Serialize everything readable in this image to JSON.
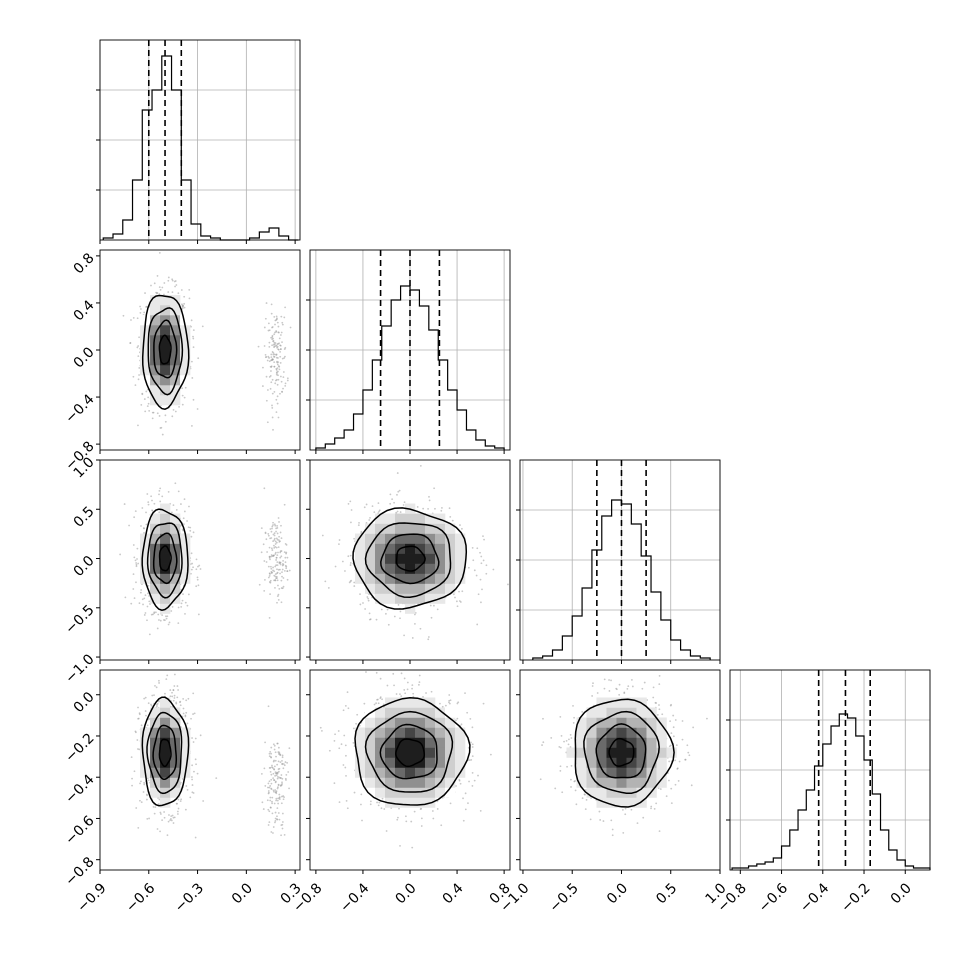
{
  "chart_data": {
    "type": "corner",
    "variables": [
      {
        "range": [
          -0.9,
          0.33
        ],
        "ticks": [
          -0.9,
          -0.6,
          -0.3,
          0.0,
          0.3
        ],
        "tick_labels": [
          "-0.9",
          "-0.6",
          "-0.3",
          "0.0",
          "0.3"
        ],
        "quantiles": [
          -0.6,
          -0.5,
          -0.4
        ],
        "histogram": {
          "edges": [
            -0.88,
            -0.82,
            -0.76,
            -0.7,
            -0.64,
            -0.58,
            -0.52,
            -0.46,
            -0.4,
            -0.34,
            -0.28,
            -0.22,
            -0.16,
            -0.1,
            -0.04,
            0.02,
            0.08,
            0.14,
            0.2,
            0.26,
            0.32
          ],
          "counts": [
            1,
            3,
            10,
            30,
            65,
            75,
            92,
            75,
            30,
            8,
            2,
            1,
            0,
            0,
            0,
            1,
            4,
            6,
            2,
            0
          ]
        },
        "marginal_ylim": [
          0,
          100
        ]
      },
      {
        "range": [
          -0.85,
          0.85
        ],
        "ticks": [
          -0.8,
          -0.4,
          0.0,
          0.4,
          0.8
        ],
        "tick_labels": [
          "-0.8",
          "-0.4",
          "0.0",
          "0.4",
          "0.8"
        ],
        "quantiles": [
          -0.25,
          0.0,
          0.25
        ],
        "histogram": {
          "edges": [
            -0.8,
            -0.72,
            -0.64,
            -0.56,
            -0.48,
            -0.4,
            -0.32,
            -0.24,
            -0.16,
            -0.08,
            0.0,
            0.08,
            0.16,
            0.24,
            0.32,
            0.4,
            0.48,
            0.56,
            0.64,
            0.72,
            0.8
          ],
          "counts": [
            1,
            3,
            6,
            10,
            18,
            30,
            45,
            62,
            75,
            82,
            80,
            72,
            60,
            45,
            30,
            20,
            10,
            5,
            2,
            1
          ]
        },
        "marginal_ylim": [
          0,
          100
        ]
      },
      {
        "range": [
          -1.03,
          1.0
        ],
        "ticks": [
          -1.0,
          -0.5,
          0.0,
          0.5,
          1.0
        ],
        "tick_labels": [
          "-1.0",
          "-0.5",
          "0.0",
          "0.5",
          "1.0"
        ],
        "quantiles": [
          -0.25,
          0.0,
          0.25
        ],
        "histogram": {
          "edges": [
            -0.9,
            -0.8,
            -0.7,
            -0.6,
            -0.5,
            -0.4,
            -0.3,
            -0.2,
            -0.1,
            0.0,
            0.1,
            0.2,
            0.3,
            0.4,
            0.5,
            0.6,
            0.7,
            0.8,
            0.9
          ],
          "counts": [
            1,
            2,
            5,
            12,
            22,
            36,
            55,
            72,
            80,
            78,
            68,
            52,
            34,
            20,
            10,
            5,
            2,
            1
          ]
        },
        "marginal_ylim": [
          0,
          100
        ]
      },
      {
        "range": [
          -0.85,
          0.12
        ],
        "ticks": [
          -0.8,
          -0.6,
          -0.4,
          -0.2,
          0.0
        ],
        "tick_labels": [
          "-0.8",
          "-0.6",
          "-0.4",
          "-0.2",
          "0.0"
        ],
        "quantiles": [
          -0.42,
          -0.29,
          -0.17
        ],
        "histogram": {
          "edges": [
            -0.84,
            -0.8,
            -0.76,
            -0.72,
            -0.68,
            -0.64,
            -0.6,
            -0.56,
            -0.52,
            -0.48,
            -0.44,
            -0.4,
            -0.36,
            -0.32,
            -0.28,
            -0.24,
            -0.2,
            -0.16,
            -0.12,
            -0.08,
            -0.04,
            0.0,
            0.04,
            0.08,
            0.12
          ],
          "counts": [
            1,
            1,
            2,
            3,
            4,
            6,
            12,
            20,
            30,
            40,
            52,
            63,
            72,
            78,
            76,
            67,
            55,
            38,
            20,
            10,
            5,
            2,
            1,
            1
          ]
        },
        "marginal_ylim": [
          0,
          100
        ]
      }
    ],
    "pairs": [
      {
        "x_var": 0,
        "y_var": 1,
        "mode": [
          -0.5,
          0.0
        ],
        "sigma": [
          0.07,
          0.24
        ],
        "minor_mode": [
          0.18,
          -0.05
        ],
        "minor_sigma": [
          0.035,
          0.2
        ]
      },
      {
        "x_var": 0,
        "y_var": 2,
        "mode": [
          -0.5,
          0.0
        ],
        "sigma": [
          0.07,
          0.25
        ],
        "minor_mode": [
          0.18,
          0.0
        ],
        "minor_sigma": [
          0.035,
          0.2
        ]
      },
      {
        "x_var": 1,
        "y_var": 2,
        "mode": [
          0.0,
          0.0
        ],
        "sigma": [
          0.24,
          0.25
        ]
      },
      {
        "x_var": 0,
        "y_var": 3,
        "mode": [
          -0.5,
          -0.28
        ],
        "sigma": [
          0.07,
          0.13
        ],
        "minor_mode": [
          0.18,
          -0.42
        ],
        "minor_sigma": [
          0.035,
          0.12
        ]
      },
      {
        "x_var": 1,
        "y_var": 3,
        "mode": [
          0.0,
          -0.28
        ],
        "sigma": [
          0.24,
          0.13
        ]
      },
      {
        "x_var": 2,
        "y_var": 3,
        "mode": [
          0.0,
          -0.28
        ],
        "sigma": [
          0.25,
          0.13
        ]
      }
    ],
    "contour_levels_sigma": [
      0.5,
      1.0,
      1.5,
      2.0
    ],
    "grid": true,
    "colors": {
      "line": "#000000",
      "grid": "#b0b0b0",
      "density_max": "#000000",
      "scatter": "#9a9a9a"
    }
  }
}
